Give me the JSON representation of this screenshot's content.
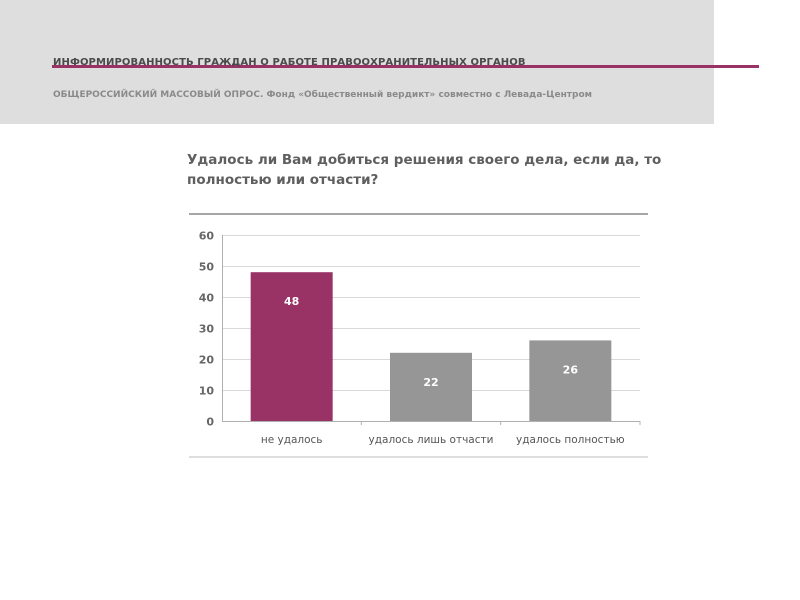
{
  "header": {
    "title": "ИНФОРМИРОВАННОСТЬ ГРАЖДАН О РАБОТЕ ПРАВООХРАНИТЕЛЬНЫХ ОРГАНОВ",
    "subtitle": "ОБЩЕРОССИЙСКИЙ МАССОВЫЙ ОПРОС. Фонд «Общественный вердикт» совместно с Левада-Центром",
    "accent_color": "#993366"
  },
  "question": "Удалось ли Вам добиться решения своего дела, если да, то полностью или отчасти?",
  "chart_data": {
    "type": "bar",
    "categories": [
      "не удалось",
      "удалось лишь отчасти",
      "удалось полностью"
    ],
    "values": [
      48,
      22,
      26
    ],
    "bar_colors": [
      "#993366",
      "#969696",
      "#969696"
    ],
    "ylim": [
      0,
      60
    ],
    "yticks": [
      0,
      10,
      20,
      30,
      40,
      50,
      60
    ],
    "grid": true,
    "data_labels": [
      "48",
      "22",
      "26"
    ],
    "xlabel": "",
    "ylabel": ""
  }
}
